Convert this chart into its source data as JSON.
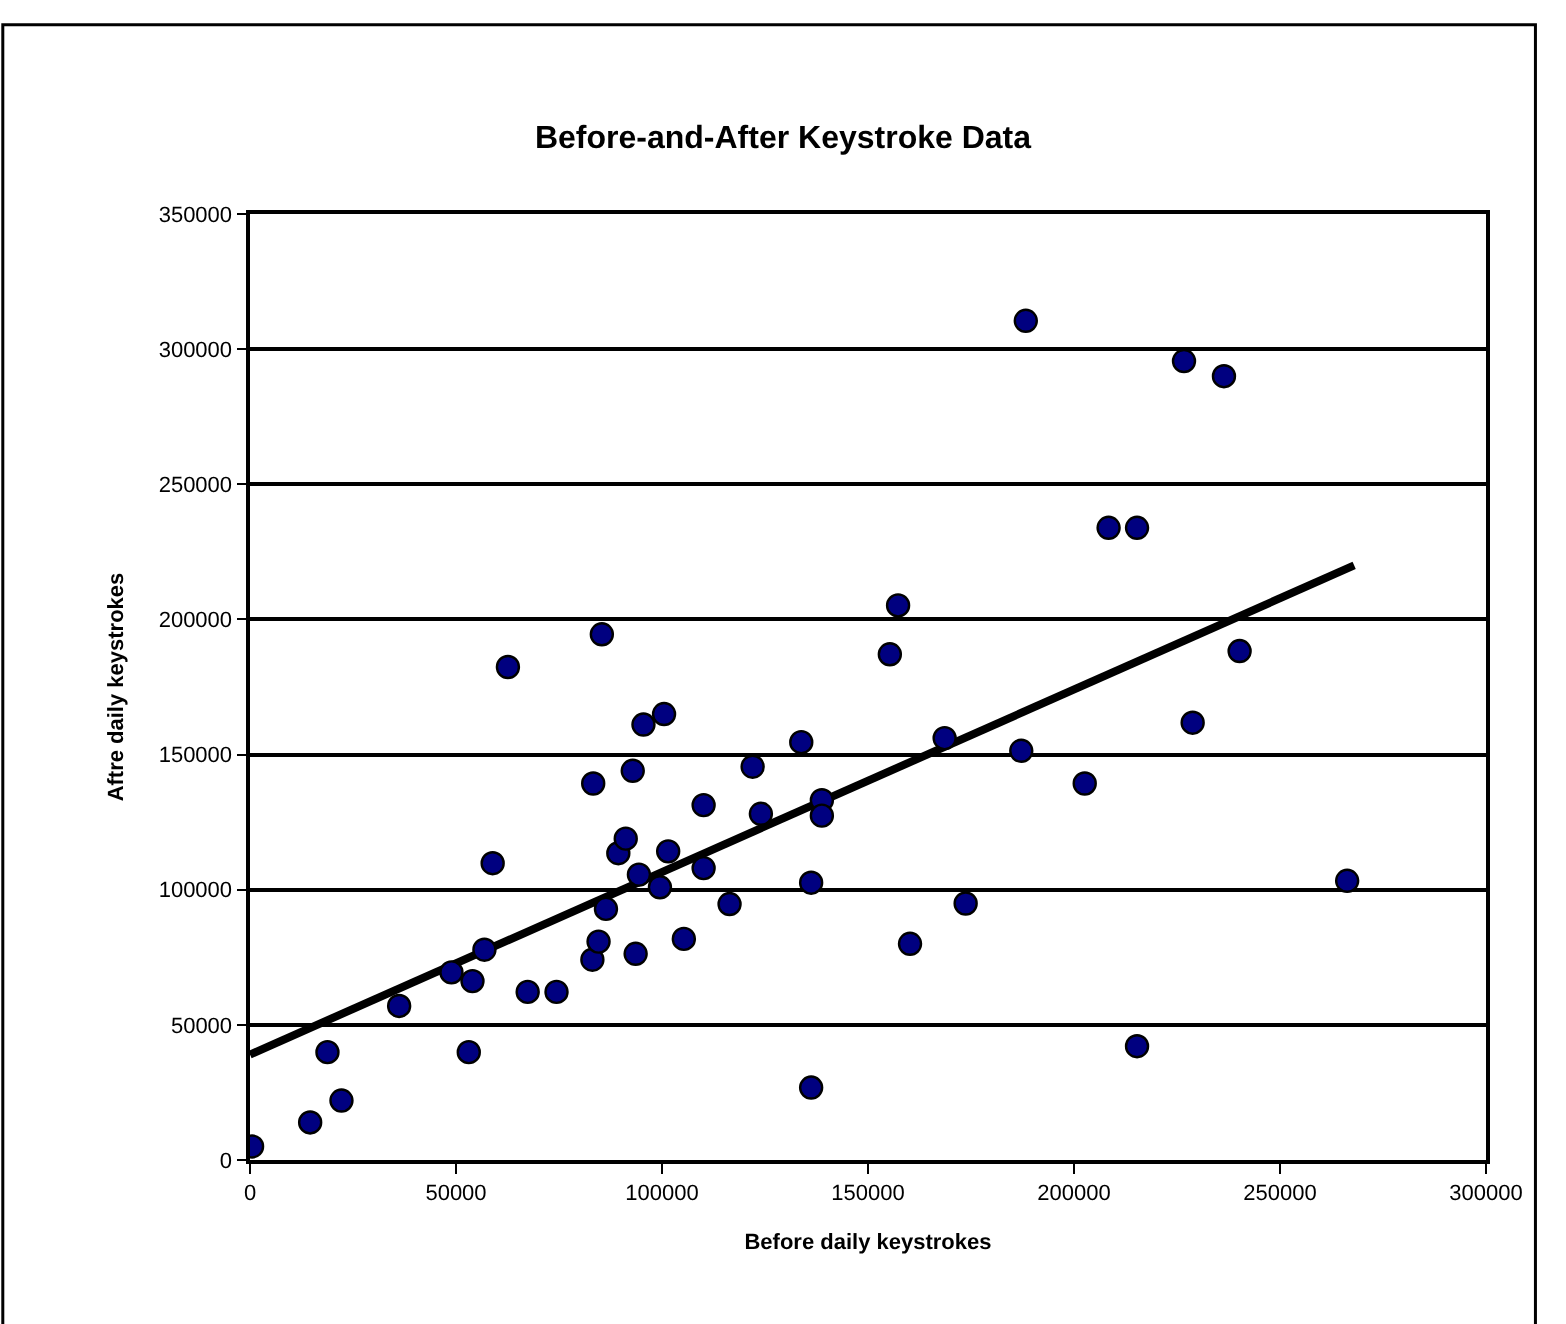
{
  "chart_data": {
    "type": "scatter",
    "title": "Before-and-After Keystroke Data",
    "xlabel": "Before daily keystrokes",
    "ylabel": "Aftre daily keystrokes",
    "xlim": [
      0,
      300000
    ],
    "xticks": [
      0,
      50000,
      100000,
      150000,
      200000,
      250000,
      300000
    ],
    "ylim": [
      0,
      350000
    ],
    "yticks": [
      0,
      50000,
      100000,
      150000,
      200000,
      250000,
      300000,
      350000
    ],
    "grid": "y",
    "marker": "circle",
    "series": [
      {
        "color": "#000080",
        "x": [
          500,
          14600,
          18800,
          22200,
          36200,
          48900,
          54000,
          53100,
          56900,
          58900,
          62600,
          67400,
          74400,
          83300,
          83100,
          84600,
          85400,
          86400,
          89400,
          91200,
          92900,
          93600,
          94400,
          95500,
          99500,
          100500,
          101500,
          105300,
          110100,
          110100,
          116400,
          122000,
          124000,
          133800,
          136200,
          136200,
          138800,
          138800,
          155300,
          157300,
          160200,
          168600,
          173700,
          187200,
          188300,
          202600,
          208400,
          215300,
          215300,
          226700,
          228800,
          236400,
          240200,
          266300
        ],
        "values": [
          5000,
          13900,
          39900,
          22000,
          57000,
          69400,
          66200,
          39900,
          77800,
          109800,
          182400,
          62200,
          62200,
          139300,
          74100,
          80800,
          194500,
          92900,
          113500,
          118900,
          144000,
          76300,
          105600,
          161100,
          100900,
          165000,
          114200,
          81800,
          131300,
          108000,
          94700,
          145500,
          128100,
          154600,
          102600,
          26800,
          133100,
          127400,
          187100,
          205200,
          80000,
          156100,
          94900,
          151400,
          310500,
          139300,
          233900,
          233900,
          42100,
          295600,
          161800,
          290000,
          188300,
          103300
        ]
      },
      {
        "type": "line",
        "color": "#000000",
        "marker": "none",
        "line_style": "solid",
        "x": [
          0,
          268000
        ],
        "values": [
          39000,
          220000
        ]
      }
    ]
  }
}
